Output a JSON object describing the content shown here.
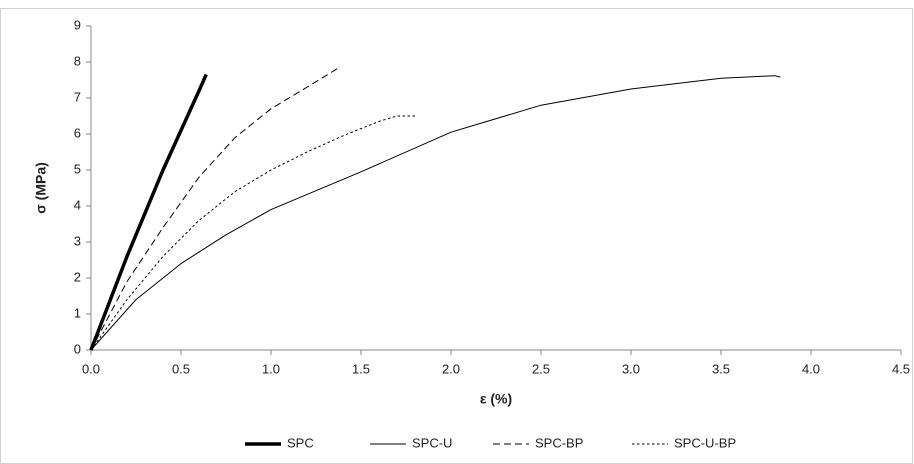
{
  "chart_data": {
    "type": "line",
    "x_label": "ε (%)",
    "y_label": "σ (MPa)",
    "xlim": [
      0,
      4.5
    ],
    "ylim": [
      0,
      9
    ],
    "xticks": [
      {
        "value": 0,
        "label": "0.0"
      },
      0.5,
      {
        "value": 1,
        "label": "1.0"
      },
      1.5,
      {
        "value": 2,
        "label": "2.0"
      },
      2.5,
      {
        "value": 3,
        "label": "3.0"
      },
      3.5,
      {
        "value": 4,
        "label": "4.0"
      },
      4.5
    ],
    "yticks": [
      0,
      1,
      2,
      3,
      4,
      5,
      6,
      7,
      8,
      9
    ],
    "grid": false,
    "legend": "bottom",
    "series": [
      {
        "name": "SPC",
        "color": "#000000",
        "style": "solid",
        "width": 3.5,
        "x": [
          0,
          0.1,
          0.2,
          0.3,
          0.4,
          0.5,
          0.6,
          0.64
        ],
        "values": [
          0,
          1.3,
          2.6,
          3.8,
          5.0,
          6.1,
          7.2,
          7.65
        ]
      },
      {
        "name": "SPC-U",
        "color": "#000000",
        "style": "solid",
        "width": 1,
        "x": [
          0,
          0.25,
          0.5,
          0.75,
          1.0,
          1.5,
          2.0,
          2.5,
          3.0,
          3.5,
          3.8,
          3.83
        ],
        "values": [
          0,
          1.4,
          2.4,
          3.2,
          3.9,
          4.95,
          6.05,
          6.8,
          7.25,
          7.55,
          7.62,
          7.58
        ]
      },
      {
        "name": "SPC-BP",
        "color": "#000000",
        "style": "dashed",
        "width": 1,
        "x": [
          0,
          0.2,
          0.4,
          0.6,
          0.8,
          1.0,
          1.2,
          1.38
        ],
        "values": [
          0,
          1.9,
          3.4,
          4.8,
          5.9,
          6.7,
          7.3,
          7.85
        ]
      },
      {
        "name": "SPC-U-BP",
        "color": "#000000",
        "style": "dotted",
        "width": 1,
        "x": [
          0,
          0.2,
          0.4,
          0.6,
          0.8,
          1.0,
          1.2,
          1.4,
          1.6,
          1.7,
          1.8
        ],
        "values": [
          0,
          1.4,
          2.6,
          3.6,
          4.4,
          5.0,
          5.5,
          5.95,
          6.35,
          6.5,
          6.5
        ]
      }
    ]
  }
}
